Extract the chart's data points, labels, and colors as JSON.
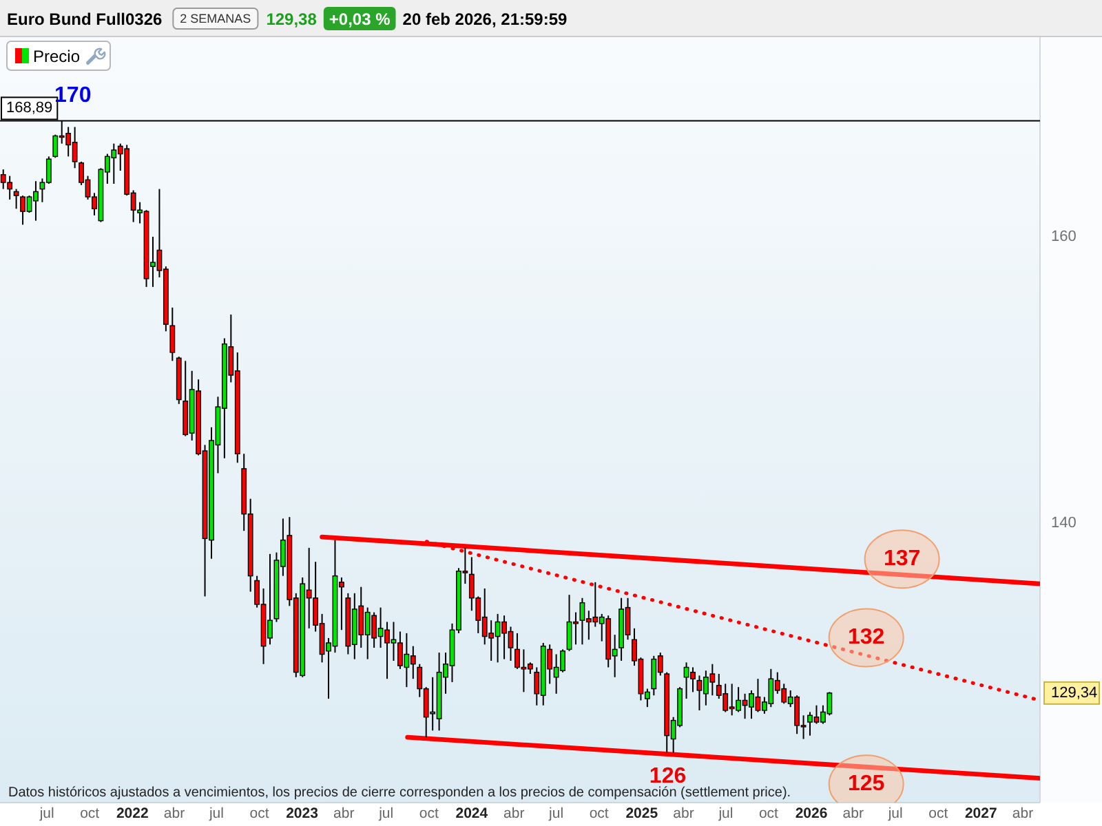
{
  "chart_data": {
    "type": "candlestick",
    "title": "Euro Bund Full0326",
    "subtitle": "2 SEMANAS",
    "log": "y",
    "legend": "top left",
    "xlim": [
      "2021-03-22",
      "2027-05-08"
    ],
    "ylim": [
      122.9,
      175.6
    ],
    "xticks": [
      {
        "value": "2021-07",
        "label": "jul"
      },
      {
        "value": "2021-10",
        "label": "oct"
      },
      {
        "value": "2022",
        "label": "2022"
      },
      {
        "value": "2022-04",
        "label": "abr"
      },
      {
        "value": "2022-07",
        "label": "jul"
      },
      {
        "value": "2022-10",
        "label": "oct"
      },
      {
        "value": "2023",
        "label": "2023"
      },
      {
        "value": "2023-04",
        "label": "abr"
      },
      {
        "value": "2023-07",
        "label": "jul"
      },
      {
        "value": "2023-10",
        "label": "oct"
      },
      {
        "value": "2024",
        "label": "2024"
      },
      {
        "value": "2024-04",
        "label": "abr"
      },
      {
        "value": "2024-07",
        "label": "jul"
      },
      {
        "value": "2024-10",
        "label": "oct"
      },
      {
        "value": "2025",
        "label": "2025"
      },
      {
        "value": "2025-04",
        "label": "abr"
      },
      {
        "value": "2025-07",
        "label": "jul"
      },
      {
        "value": "2025-10",
        "label": "oct"
      },
      {
        "value": "2026",
        "label": "2026"
      },
      {
        "value": "2026-04",
        "label": "abr"
      },
      {
        "value": "2026-07",
        "label": "jul"
      },
      {
        "value": "2026-10",
        "label": "oct"
      },
      {
        "value": "2027",
        "label": "2027"
      },
      {
        "value": "2027-04",
        "label": "abr"
      }
    ],
    "yticks": [
      140,
      160,
      {
        "value": 129.34,
        "label": "129,34"
      }
    ],
    "ref_lines": [
      {
        "axis": "y",
        "value": 168.89,
        "label": "168,89",
        "color": "#000000"
      }
    ],
    "annotations": [
      "129,38",
      "+0,03 %",
      "20 feb 2026, 21:59:59",
      {
        "text": "170",
        "x": "2021-08-02",
        "y": 168.89
      },
      {
        "text": "126",
        "x": "2025-02-26",
        "y": 125.7
      },
      {
        "text": "137",
        "x": "2026-07-15",
        "y": 136.7
      },
      {
        "text": "132",
        "x": "2026-04-29",
        "y": 131.7
      },
      {
        "text": "125",
        "x": "2026-04-29",
        "y": 125.0
      },
      "Datos históricos ajustados a vencimientos, los precios de cierre corresponden a los precios de compensación (settlement price)."
    ],
    "series": [
      {
        "name": "Precio",
        "x": [
          "2021-03-29",
          "2021-04-12",
          "2021-04-26",
          "2021-05-10",
          "2021-05-24",
          "2021-06-07",
          "2021-06-21",
          "2021-07-05",
          "2021-07-19",
          "2021-08-02",
          "2021-08-16",
          "2021-08-30",
          "2021-09-13",
          "2021-09-27",
          "2021-10-11",
          "2021-10-25",
          "2021-11-08",
          "2021-11-22",
          "2021-12-06",
          "2021-12-20",
          "2022-01-03",
          "2022-01-17",
          "2022-01-31",
          "2022-02-14",
          "2022-02-28",
          "2022-03-14",
          "2022-03-28",
          "2022-04-11",
          "2022-04-25",
          "2022-05-09",
          "2022-05-23",
          "2022-06-06",
          "2022-06-20",
          "2022-07-04",
          "2022-07-18",
          "2022-08-01",
          "2022-08-15",
          "2022-08-29",
          "2022-09-12",
          "2022-09-26",
          "2022-10-10",
          "2022-10-24",
          "2022-11-07",
          "2022-11-21",
          "2022-12-05",
          "2022-12-19",
          "2023-01-02",
          "2023-01-16",
          "2023-01-30",
          "2023-02-13",
          "2023-02-27",
          "2023-03-13",
          "2023-03-27",
          "2023-04-10",
          "2023-04-24",
          "2023-05-08",
          "2023-05-22",
          "2023-06-05",
          "2023-06-19",
          "2023-07-03",
          "2023-07-17",
          "2023-07-31",
          "2023-08-14",
          "2023-08-28",
          "2023-09-11",
          "2023-09-25",
          "2023-10-09",
          "2023-10-23",
          "2023-11-06",
          "2023-11-20",
          "2023-12-04",
          "2023-12-18",
          "2024-01-01",
          "2024-01-15",
          "2024-01-29",
          "2024-02-12",
          "2024-02-26",
          "2024-03-11",
          "2024-03-25",
          "2024-04-08",
          "2024-04-22",
          "2024-05-06",
          "2024-05-20",
          "2024-06-03",
          "2024-06-17",
          "2024-07-01",
          "2024-07-15",
          "2024-07-29",
          "2024-08-12",
          "2024-08-26",
          "2024-09-09",
          "2024-09-23",
          "2024-10-07",
          "2024-10-21",
          "2024-11-04",
          "2024-11-18",
          "2024-12-02",
          "2024-12-16",
          "2024-12-30",
          "2025-01-13",
          "2025-01-27",
          "2025-02-10",
          "2025-02-24",
          "2025-03-10",
          "2025-03-24",
          "2025-04-07",
          "2025-04-21",
          "2025-05-05",
          "2025-05-19",
          "2025-06-02",
          "2025-06-16",
          "2025-06-30",
          "2025-07-14",
          "2025-07-28",
          "2025-08-11",
          "2025-08-25",
          "2025-09-08",
          "2025-09-22",
          "2025-10-06",
          "2025-10-20",
          "2025-11-03",
          "2025-11-17",
          "2025-12-01",
          "2025-12-15",
          "2025-12-29",
          "2026-01-12",
          "2026-01-26",
          "2026-02-09"
        ],
        "ohlc": [
          [
            164.7,
            165.1,
            163.6,
            164.1
          ],
          [
            164.1,
            164.6,
            162.8,
            163.6
          ],
          [
            163.4,
            163.6,
            162.1,
            163.1
          ],
          [
            163.0,
            163.1,
            160.9,
            161.9
          ],
          [
            161.9,
            163.1,
            161.8,
            163.0
          ],
          [
            162.7,
            164.2,
            161.2,
            163.4
          ],
          [
            163.6,
            164.4,
            162.6,
            164.1
          ],
          [
            164.1,
            166.1,
            164.0,
            165.9
          ],
          [
            166.1,
            167.8,
            166.0,
            167.7
          ],
          [
            167.7,
            168.89,
            167.1,
            167.6
          ],
          [
            167.9,
            168.4,
            166.1,
            167.0
          ],
          [
            167.2,
            168.4,
            165.2,
            165.7
          ],
          [
            165.6,
            165.7,
            163.9,
            164.1
          ],
          [
            164.3,
            164.6,
            162.8,
            163.0
          ],
          [
            163.0,
            163.3,
            161.6,
            162.1
          ],
          [
            161.2,
            165.2,
            161.1,
            165.1
          ],
          [
            164.9,
            166.3,
            164.0,
            166.1
          ],
          [
            166.0,
            167.1,
            164.0,
            166.6
          ],
          [
            166.9,
            167.1,
            165.0,
            166.3
          ],
          [
            166.7,
            167.0,
            163.1,
            163.2
          ],
          [
            163.3,
            163.5,
            161.1,
            162.0
          ],
          [
            161.8,
            162.6,
            161.0,
            162.0
          ],
          [
            161.9,
            162.0,
            156.3,
            156.9
          ],
          [
            157.8,
            160.0,
            156.3,
            158.1
          ],
          [
            159.0,
            163.6,
            157.0,
            157.5
          ],
          [
            157.6,
            157.8,
            153.1,
            153.6
          ],
          [
            153.5,
            154.8,
            151.0,
            151.6
          ],
          [
            151.2,
            151.3,
            148.0,
            148.3
          ],
          [
            148.2,
            151.0,
            145.8,
            145.9
          ],
          [
            146.0,
            150.3,
            145.5,
            149.0
          ],
          [
            148.9,
            149.7,
            144.5,
            144.6
          ],
          [
            144.8,
            145.2,
            135.3,
            139.0
          ],
          [
            138.9,
            146.4,
            137.7,
            145.5
          ],
          [
            145.2,
            148.5,
            143.3,
            147.8
          ],
          [
            147.7,
            152.6,
            144.3,
            152.2
          ],
          [
            152.0,
            154.3,
            149.5,
            150.0
          ],
          [
            150.3,
            151.6,
            144.0,
            144.6
          ],
          [
            143.6,
            144.6,
            139.5,
            140.6
          ],
          [
            140.6,
            141.6,
            135.6,
            136.6
          ],
          [
            136.3,
            136.6,
            134.6,
            134.8
          ],
          [
            134.8,
            135.8,
            131.1,
            132.2
          ],
          [
            132.7,
            138.0,
            132.3,
            133.8
          ],
          [
            133.9,
            138.1,
            133.7,
            137.6
          ],
          [
            137.2,
            140.3,
            136.6,
            138.9
          ],
          [
            139.2,
            140.4,
            134.7,
            135.1
          ],
          [
            135.2,
            135.5,
            130.3,
            130.6
          ],
          [
            130.4,
            136.5,
            130.3,
            136.1
          ],
          [
            135.7,
            138.4,
            133.3,
            135.2
          ],
          [
            135.2,
            137.5,
            133.1,
            133.5
          ],
          [
            133.6,
            134.2,
            131.2,
            131.7
          ],
          [
            131.9,
            132.7,
            129.0,
            132.4
          ],
          [
            132.2,
            138.9,
            131.8,
            136.6
          ],
          [
            136.2,
            136.5,
            133.2,
            135.9
          ],
          [
            135.2,
            135.5,
            131.7,
            132.2
          ],
          [
            132.3,
            135.5,
            131.4,
            134.5
          ],
          [
            134.7,
            135.9,
            132.1,
            132.9
          ],
          [
            132.9,
            134.6,
            131.4,
            134.3
          ],
          [
            134.1,
            134.3,
            132.1,
            132.7
          ],
          [
            132.8,
            134.6,
            132.1,
            133.3
          ],
          [
            133.2,
            133.7,
            130.2,
            132.4
          ],
          [
            132.4,
            133.7,
            131.3,
            132.6
          ],
          [
            132.4,
            133.1,
            130.8,
            131.0
          ],
          [
            130.9,
            133.0,
            129.7,
            131.7
          ],
          [
            131.6,
            132.2,
            130.2,
            131.1
          ],
          [
            130.9,
            131.1,
            129.1,
            129.6
          ],
          [
            129.6,
            129.7,
            126.7,
            127.9
          ],
          [
            128.1,
            130.3,
            127.1,
            128.2
          ],
          [
            127.8,
            131.8,
            127.1,
            130.6
          ],
          [
            130.3,
            131.8,
            129.3,
            131.1
          ],
          [
            131.0,
            133.6,
            130.0,
            133.2
          ],
          [
            133.2,
            137.1,
            133.0,
            136.9
          ],
          [
            136.9,
            138.4,
            136.1,
            136.8
          ],
          [
            136.7,
            137.8,
            134.4,
            135.2
          ],
          [
            135.2,
            135.3,
            133.0,
            133.8
          ],
          [
            134.0,
            135.8,
            132.3,
            132.8
          ],
          [
            133.0,
            133.8,
            131.3,
            132.7
          ],
          [
            132.8,
            134.2,
            131.2,
            133.7
          ],
          [
            133.7,
            134.1,
            131.4,
            133.0
          ],
          [
            133.1,
            133.4,
            131.3,
            132.1
          ],
          [
            132.0,
            133.0,
            130.8,
            130.9
          ],
          [
            130.9,
            132.0,
            129.4,
            130.8
          ],
          [
            131.1,
            131.2,
            130.5,
            130.8
          ],
          [
            130.6,
            130.9,
            128.6,
            129.3
          ],
          [
            129.2,
            132.4,
            128.6,
            132.2
          ],
          [
            132.0,
            132.3,
            129.9,
            130.8
          ],
          [
            130.3,
            131.7,
            129.3,
            130.9
          ],
          [
            130.7,
            132.0,
            130.6,
            131.9
          ],
          [
            132.0,
            135.4,
            131.9,
            133.7
          ],
          [
            133.7,
            134.3,
            132.3,
            133.6
          ],
          [
            133.8,
            135.2,
            132.3,
            134.9
          ],
          [
            133.9,
            134.4,
            132.6,
            133.7
          ],
          [
            134.0,
            136.2,
            133.4,
            133.7
          ],
          [
            133.6,
            134.2,
            132.5,
            134.0
          ],
          [
            133.9,
            134.1,
            130.9,
            131.4
          ],
          [
            131.6,
            132.9,
            130.3,
            132.0
          ],
          [
            132.1,
            135.2,
            131.3,
            134.5
          ],
          [
            134.6,
            135.2,
            132.6,
            132.9
          ],
          [
            132.6,
            133.3,
            131.0,
            131.3
          ],
          [
            131.4,
            131.5,
            128.9,
            129.3
          ],
          [
            129.0,
            129.6,
            128.5,
            129.4
          ],
          [
            129.6,
            131.6,
            129.2,
            131.4
          ],
          [
            131.6,
            131.8,
            130.4,
            130.6
          ],
          [
            130.5,
            130.6,
            125.8,
            126.8
          ],
          [
            126.6,
            127.9,
            125.8,
            127.7
          ],
          [
            127.4,
            129.7,
            127.3,
            129.6
          ],
          [
            130.3,
            131.2,
            129.0,
            130.9
          ],
          [
            130.6,
            130.9,
            129.4,
            130.2
          ],
          [
            130.1,
            130.4,
            128.3,
            129.5
          ],
          [
            129.3,
            130.7,
            128.6,
            130.3
          ],
          [
            130.5,
            131.1,
            129.2,
            130.0
          ],
          [
            129.8,
            130.5,
            129.0,
            129.2
          ],
          [
            129.3,
            129.9,
            128.2,
            128.3
          ],
          [
            128.5,
            129.9,
            128.0,
            128.4
          ],
          [
            128.3,
            129.7,
            128.2,
            128.9
          ],
          [
            128.9,
            129.3,
            127.8,
            128.6
          ],
          [
            128.5,
            129.5,
            127.8,
            129.3
          ],
          [
            129.1,
            130.2,
            128.2,
            128.3
          ],
          [
            128.3,
            129.1,
            128.1,
            128.8
          ],
          [
            128.7,
            130.8,
            128.5,
            130.2
          ],
          [
            130.1,
            130.6,
            129.3,
            129.5
          ],
          [
            129.6,
            129.9,
            128.7,
            128.8
          ],
          [
            128.7,
            129.5,
            128.5,
            129.1
          ],
          [
            129.1,
            129.2,
            126.9,
            127.4
          ],
          [
            127.4,
            128.0,
            126.6,
            127.4
          ],
          [
            127.6,
            128.2,
            126.8,
            128.0
          ],
          [
            127.9,
            128.6,
            127.5,
            127.6
          ],
          [
            127.6,
            128.6,
            127.5,
            128.2
          ],
          [
            128.1,
            129.4,
            128.0,
            129.34
          ]
        ],
        "colors": [
          "#ff0000",
          "#ff0000",
          "#ff0000",
          "#ff0000",
          "#00e600",
          "#00e600",
          "#00e600",
          "#00e600",
          "#00e600",
          "#ff0000",
          "#ff0000",
          "#ff0000",
          "#ff0000",
          "#ff0000",
          "#ff0000",
          "#00e600",
          "#00e600",
          "#00e600",
          "#ff0000",
          "#ff0000",
          "#ff0000",
          "#00e600",
          "#ff0000",
          "#00e600",
          "#ff0000",
          "#ff0000",
          "#ff0000",
          "#ff0000",
          "#ff0000",
          "#00e600",
          "#ff0000",
          "#ff0000",
          "#00e600",
          "#00e600",
          "#00e600",
          "#ff0000",
          "#ff0000",
          "#ff0000",
          "#ff0000",
          "#ff0000",
          "#ff0000",
          "#00e600",
          "#00e600",
          "#00e600",
          "#ff0000",
          "#ff0000",
          "#00e600",
          "#ff0000",
          "#ff0000",
          "#ff0000",
          "#00e600",
          "#00e600",
          "#ff0000",
          "#ff0000",
          "#00e600",
          "#ff0000",
          "#00e600",
          "#ff0000",
          "#00e600",
          "#ff0000",
          "#00e600",
          "#ff0000",
          "#00e600",
          "#ff0000",
          "#ff0000",
          "#ff0000",
          "#00e600",
          "#00e600",
          "#00e600",
          "#00e600",
          "#00e600",
          "#ff0000",
          "#ff0000",
          "#ff0000",
          "#ff0000",
          "#ff0000",
          "#00e600",
          "#ff0000",
          "#ff0000",
          "#ff0000",
          "#ff0000",
          "#ff0000",
          "#ff0000",
          "#00e600",
          "#ff0000",
          "#00e600",
          "#00e600",
          "#00e600",
          "#ff0000",
          "#00e600",
          "#ff0000",
          "#ff0000",
          "#00e600",
          "#ff0000",
          "#00e600",
          "#00e600",
          "#ff0000",
          "#ff0000",
          "#ff0000",
          "#00e600",
          "#00e600",
          "#ff0000",
          "#ff0000",
          "#00e600",
          "#00e600",
          "#00e600",
          "#ff0000",
          "#ff0000",
          "#00e600",
          "#ff0000",
          "#ff0000",
          "#ff0000",
          "#ff0000",
          "#00e600",
          "#ff0000",
          "#00e600",
          "#ff0000",
          "#00e600",
          "#00e600",
          "#ff0000",
          "#ff0000",
          "#00e600",
          "#ff0000",
          "#ff0000",
          "#00e600",
          "#ff0000",
          "#00e600",
          "#00e600"
        ]
      },
      {
        "type": "line",
        "color": "#ff0000",
        "x": [
          "2023-02-13",
          "2027-05-08"
        ],
        "values": [
          139.1,
          136.1
        ]
      },
      {
        "type": "line",
        "color": "#ff0000",
        "x": [
          "2023-08-16",
          "2027-05-08"
        ],
        "values": [
          126.7,
          124.3
        ]
      },
      {
        "type": "line",
        "color": "#ff0000",
        "line_style": "dotted",
        "x": [
          "2023-09-26",
          "2027-05-08"
        ],
        "values": [
          138.8,
          128.9
        ]
      }
    ]
  }
}
